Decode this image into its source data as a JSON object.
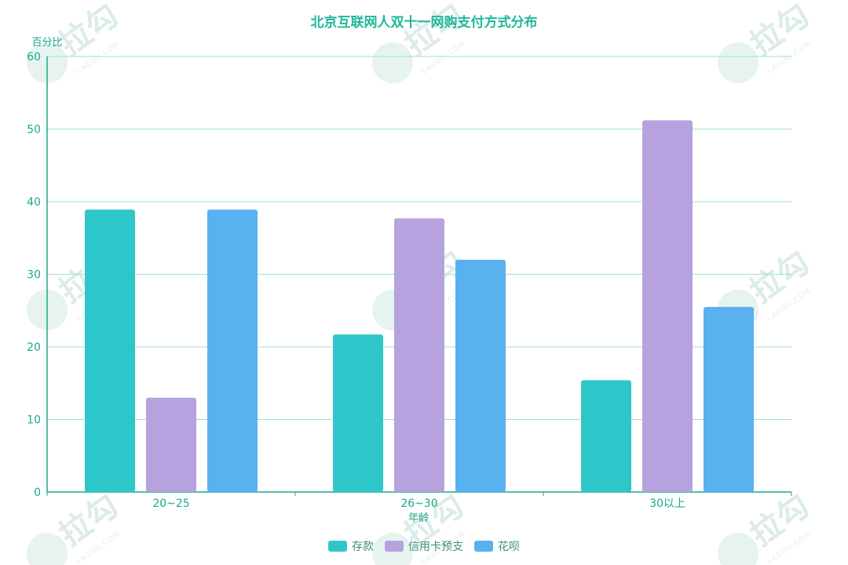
{
  "chart_data": {
    "type": "bar",
    "title": "北京互联网人双十一网购支付方式分布",
    "ylabel": "百分比",
    "xlabel": "年龄",
    "ylim": [
      0,
      60
    ],
    "yticks": [
      0,
      10,
      20,
      30,
      40,
      50,
      60
    ],
    "categories": [
      "20~25",
      "26~30",
      "30以上"
    ],
    "series": [
      {
        "name": "存款",
        "color": "#2ec7c9",
        "values": [
          38.9,
          21.7,
          15.4
        ]
      },
      {
        "name": "信用卡预支",
        "color": "#b6a2de",
        "values": [
          13.0,
          37.7,
          51.2
        ]
      },
      {
        "name": "花呗",
        "color": "#5ab1ef",
        "values": [
          38.9,
          32.0,
          25.5
        ]
      }
    ],
    "grid": true,
    "legend_position": "bottom-center"
  },
  "watermark": {
    "text": "拉勾",
    "subtext": "LAGOU.COM"
  }
}
